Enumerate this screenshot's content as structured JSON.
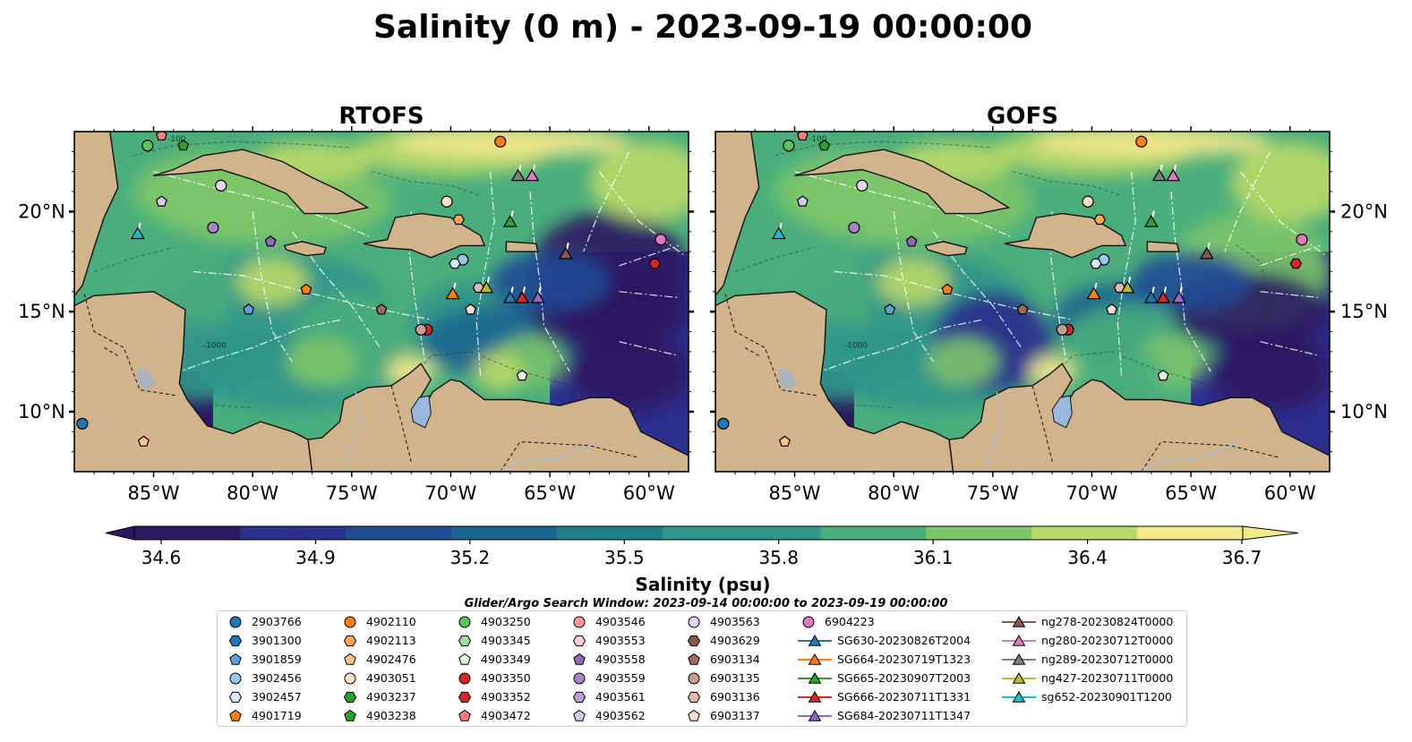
{
  "chart_data": {
    "type": "heatmap",
    "title": "Salinity (0 m) - 2023-09-19 00:00:00",
    "panels": [
      {
        "title": "RTOFS",
        "variant": 0
      },
      {
        "title": "GOFS",
        "variant": 1
      }
    ],
    "lon_range": [
      -89,
      -58
    ],
    "lat_range": [
      7,
      24
    ],
    "lon_ticks": [
      -85,
      -80,
      -75,
      -70,
      -65,
      -60
    ],
    "lon_tick_labels": [
      "85°W",
      "80°W",
      "75°W",
      "70°W",
      "65°W",
      "60°W"
    ],
    "lat_ticks": [
      10,
      15,
      20
    ],
    "lat_tick_labels": [
      "10°N",
      "15°N",
      "20°N"
    ],
    "colorbar": {
      "label": "Salinity (psu)",
      "min": 34.6,
      "max": 36.7,
      "ticks": [
        34.6,
        34.9,
        35.2,
        35.5,
        35.8,
        36.1,
        36.4,
        36.7
      ],
      "tick_labels": [
        "34.6",
        "34.9",
        "35.2",
        "35.5",
        "35.8",
        "36.1",
        "36.4",
        "36.7"
      ],
      "colors": [
        "#2b1a63",
        "#2c2f8c",
        "#1f4a95",
        "#1c6590",
        "#207e8c",
        "#30968a",
        "#4aae7c",
        "#7cc56a",
        "#b9d968",
        "#f3e88c"
      ]
    },
    "search_window": "Glider/Argo Search Window: 2023-09-14 00:00:00 to 2023-09-19 00:00:00",
    "contour_labels": [
      "-100",
      "-1000"
    ],
    "argo_floats": [
      {
        "id": "2903766",
        "marker": "circle",
        "color": "#1f77b4",
        "lon": -88.6,
        "lat": 9.4
      },
      {
        "id": "3901300",
        "marker": "hexagon",
        "color": "#1f77b4",
        "lon": null,
        "lat": null
      },
      {
        "id": "3901859",
        "marker": "pentagon",
        "color": "#5aa3d6",
        "lon": -80.2,
        "lat": 15.1
      },
      {
        "id": "3902456",
        "marker": "circle",
        "color": "#9cc5ea",
        "lon": -69.4,
        "lat": 17.6
      },
      {
        "id": "3902457",
        "marker": "hexagon",
        "color": "#d8e8f7",
        "lon": -69.8,
        "lat": 17.4
      },
      {
        "id": "4901719",
        "marker": "pentagon",
        "color": "#ff7f0e",
        "lon": -77.3,
        "lat": 16.1
      },
      {
        "id": "4902110",
        "marker": "circle",
        "color": "#ff7f0e",
        "lon": -67.5,
        "lat": 23.5
      },
      {
        "id": "4902113",
        "marker": "hexagon",
        "color": "#ffa64d",
        "lon": -69.6,
        "lat": 19.6
      },
      {
        "id": "4902476",
        "marker": "pentagon",
        "color": "#ffc48a",
        "lon": -85.5,
        "lat": 8.5
      },
      {
        "id": "4903051",
        "marker": "circle",
        "color": "#ffe0c2",
        "lon": -70.2,
        "lat": 20.5
      },
      {
        "id": "4903237",
        "marker": "hexagon",
        "color": "#2ca02c",
        "lon": null,
        "lat": null
      },
      {
        "id": "4903238",
        "marker": "pentagon",
        "color": "#2ca02c",
        "lon": -83.5,
        "lat": 23.3
      },
      {
        "id": "4903250",
        "marker": "circle",
        "color": "#5cc45c",
        "lon": -85.3,
        "lat": 23.3
      },
      {
        "id": "4903345",
        "marker": "hexagon",
        "color": "#9fdf9f",
        "lon": null,
        "lat": null
      },
      {
        "id": "4903349",
        "marker": "pentagon",
        "color": "#e2f7e2",
        "lon": -66.4,
        "lat": 11.8
      },
      {
        "id": "4903350",
        "marker": "circle",
        "color": "#d62728",
        "lon": -71.2,
        "lat": 14.1
      },
      {
        "id": "4903352",
        "marker": "hexagon",
        "color": "#d62728",
        "lon": -59.7,
        "lat": 17.4
      },
      {
        "id": "4903472",
        "marker": "pentagon",
        "color": "#f28080",
        "lon": -84.6,
        "lat": 23.8
      },
      {
        "id": "4903546",
        "marker": "circle",
        "color": "#ff9896",
        "lon": null,
        "lat": null
      },
      {
        "id": "4903553",
        "marker": "hexagon",
        "color": "#ffd0cf",
        "lon": null,
        "lat": null
      },
      {
        "id": "4903558",
        "marker": "pentagon",
        "color": "#9467bd",
        "lon": -79.1,
        "lat": 18.5
      },
      {
        "id": "4903559",
        "marker": "circle",
        "color": "#a883cc",
        "lon": -82.0,
        "lat": 19.2
      },
      {
        "id": "4903561",
        "marker": "hexagon",
        "color": "#b9a0dc",
        "lon": null,
        "lat": null
      },
      {
        "id": "4903562",
        "marker": "pentagon",
        "color": "#d9c8ee",
        "lon": -84.6,
        "lat": 20.5
      },
      {
        "id": "4903563",
        "marker": "circle",
        "color": "#e6d6f5",
        "lon": -81.6,
        "lat": 21.3
      },
      {
        "id": "4903629",
        "marker": "hexagon",
        "color": "#8c564b",
        "lon": null,
        "lat": null
      },
      {
        "id": "6903134",
        "marker": "pentagon",
        "color": "#a0695d",
        "lon": -73.5,
        "lat": 15.1
      },
      {
        "id": "6903135",
        "marker": "circle",
        "color": "#c49c94",
        "lon": -71.5,
        "lat": 14.1
      },
      {
        "id": "6903136",
        "marker": "hexagon",
        "color": "#e0b8ae",
        "lon": -68.6,
        "lat": 16.2
      },
      {
        "id": "6903137",
        "marker": "pentagon",
        "color": "#f7dcd4",
        "lon": -69.0,
        "lat": 15.1
      },
      {
        "id": "6904223",
        "marker": "circle",
        "color": "#e377c2",
        "lon": -59.4,
        "lat": 18.6
      }
    ],
    "gliders": [
      {
        "id": "SG630-20230826T2004",
        "color": "#1f77b4",
        "lon": -67.0,
        "lat": 15.7
      },
      {
        "id": "SG664-20230719T1323",
        "color": "#ff7f0e",
        "lon": -69.9,
        "lat": 15.9
      },
      {
        "id": "SG665-20230907T2003",
        "color": "#2ca02c",
        "lon": -67.0,
        "lat": 19.5
      },
      {
        "id": "SG666-20230711T1331",
        "color": "#d62728",
        "lon": -66.4,
        "lat": 15.7
      },
      {
        "id": "SG684-20230711T1347",
        "color": "#9467bd",
        "lon": -65.6,
        "lat": 15.7
      },
      {
        "id": "ng278-20230824T0000",
        "color": "#8c564b",
        "lon": -64.2,
        "lat": 17.9
      },
      {
        "id": "ng280-20230712T0000",
        "color": "#e377c2",
        "lon": -65.9,
        "lat": 21.8
      },
      {
        "id": "ng289-20230712T0000",
        "color": "#7f7f7f",
        "lon": -66.6,
        "lat": 21.8
      },
      {
        "id": "ng427-20230711T0000",
        "color": "#bcbd22",
        "lon": -68.2,
        "lat": 16.2
      },
      {
        "id": "sg652-20230901T1200",
        "color": "#17becf",
        "lon": -85.8,
        "lat": 18.9
      }
    ]
  }
}
